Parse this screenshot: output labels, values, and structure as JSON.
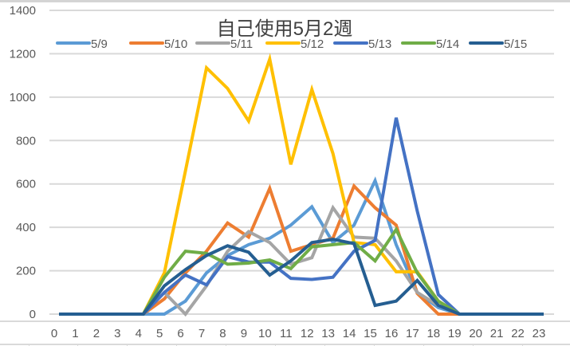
{
  "chart_data": {
    "type": "line",
    "title": "自己使用5月2週",
    "xlabel": "",
    "ylabel": "",
    "ylim": [
      0,
      1400
    ],
    "yticks": [
      0,
      200,
      400,
      600,
      800,
      1000,
      1200,
      1400
    ],
    "grid": true,
    "legend_position": "top",
    "x": [
      0,
      1,
      2,
      3,
      4,
      5,
      6,
      7,
      8,
      9,
      10,
      11,
      12,
      13,
      14,
      15,
      16,
      17,
      18,
      19,
      20,
      21,
      22,
      23
    ],
    "series": [
      {
        "name": "5/9",
        "color": "#5B9BD5",
        "values": [
          0,
          0,
          0,
          0,
          0,
          0,
          60,
          190,
          270,
          320,
          350,
          410,
          495,
          330,
          410,
          615,
          320,
          100,
          30,
          0,
          0,
          0,
          0,
          0
        ]
      },
      {
        "name": "5/10",
        "color": "#ED7D31",
        "values": [
          0,
          0,
          0,
          0,
          0,
          70,
          190,
          290,
          420,
          355,
          580,
          290,
          320,
          350,
          590,
          490,
          410,
          95,
          0,
          0,
          0,
          0,
          0,
          0
        ]
      },
      {
        "name": "5/11",
        "color": "#A5A5A5",
        "values": [
          0,
          0,
          0,
          0,
          0,
          100,
          0,
          130,
          290,
          380,
          330,
          230,
          260,
          490,
          355,
          350,
          245,
          100,
          40,
          0,
          0,
          0,
          0,
          0
        ]
      },
      {
        "name": "5/12",
        "color": "#FFC000",
        "values": [
          0,
          0,
          0,
          0,
          0,
          190,
          660,
          1135,
          1040,
          890,
          1175,
          690,
          1035,
          740,
          330,
          320,
          195,
          195,
          60,
          0,
          0,
          0,
          0,
          0
        ]
      },
      {
        "name": "5/13",
        "color": "#4472C4",
        "values": [
          0,
          0,
          0,
          0,
          0,
          100,
          180,
          135,
          265,
          240,
          240,
          165,
          160,
          170,
          290,
          340,
          905,
          475,
          90,
          0,
          0,
          0,
          0,
          0
        ]
      },
      {
        "name": "5/14",
        "color": "#70AD47",
        "values": [
          0,
          0,
          0,
          0,
          0,
          170,
          290,
          280,
          230,
          235,
          250,
          210,
          310,
          320,
          330,
          245,
          390,
          190,
          60,
          0,
          0,
          0,
          0,
          0
        ]
      },
      {
        "name": "5/15",
        "color": "#255E91",
        "values": [
          0,
          0,
          0,
          0,
          0,
          130,
          205,
          270,
          315,
          285,
          180,
          245,
          330,
          345,
          325,
          40,
          60,
          155,
          40,
          0,
          0,
          0,
          0,
          0
        ]
      }
    ]
  },
  "colors": {
    "gridline": "#d9d9d9",
    "axis_text": "#595959",
    "title_text": "#404040"
  }
}
